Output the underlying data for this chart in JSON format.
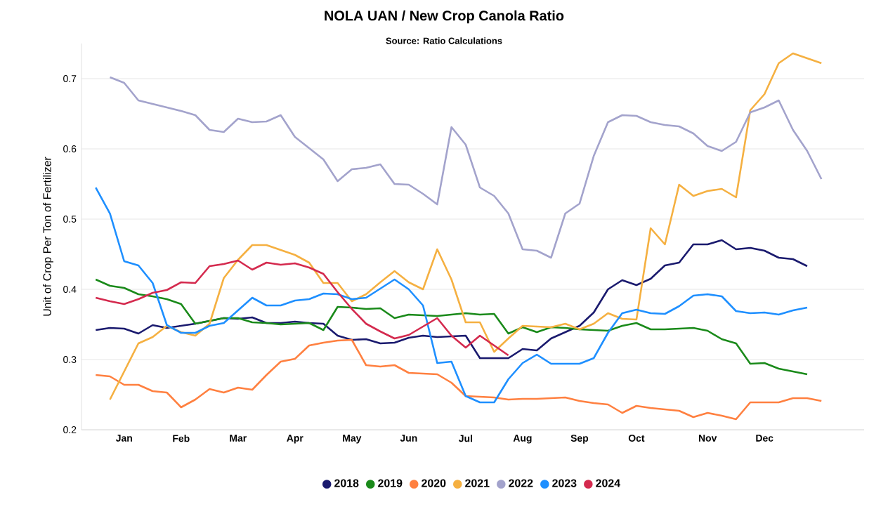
{
  "chart_data": {
    "type": "line",
    "title": "NOLA UAN / New Crop Canola Ratio",
    "subtitle": "Source: Ratio Calculations",
    "ylabel": "Unit of Crop Per Ton of Fertilizer",
    "categories": [
      null,
      null,
      "Jan",
      null,
      null,
      null,
      "Feb",
      null,
      null,
      null,
      "Mar",
      null,
      null,
      null,
      "Apr",
      null,
      null,
      null,
      "May",
      null,
      null,
      null,
      "Jun",
      null,
      null,
      null,
      "Jul",
      null,
      null,
      null,
      "Aug",
      null,
      null,
      null,
      "Sep",
      null,
      null,
      null,
      "Oct",
      null,
      null,
      null,
      null,
      "Nov",
      null,
      null,
      null,
      "Dec",
      null,
      null,
      null,
      null,
      null,
      null
    ],
    "ylim": [
      0.2,
      0.75
    ],
    "yticks": [
      0.2,
      0.3,
      0.4,
      0.5,
      0.6,
      0.7
    ],
    "grid": "y",
    "legend": "bottom",
    "marker": "none",
    "line_style": "solid",
    "series": [
      {
        "name": "2018",
        "color": "#1a1a6e",
        "values": [
          0.342,
          0.345,
          0.344,
          0.337,
          0.349,
          0.345,
          0.348,
          0.351,
          0.355,
          0.359,
          0.358,
          0.36,
          0.352,
          0.352,
          0.354,
          0.352,
          0.351,
          0.334,
          0.328,
          0.329,
          0.323,
          0.324,
          0.331,
          0.334,
          0.332,
          0.333,
          0.334,
          0.302,
          0.302,
          0.302,
          0.315,
          0.313,
          0.33,
          0.339,
          0.348,
          0.367,
          0.4,
          0.413,
          0.406,
          0.415,
          0.434,
          0.438,
          0.464,
          0.464,
          0.47,
          0.457,
          0.459,
          0.455,
          0.445,
          0.443,
          0.433,
          null,
          null,
          null
        ]
      },
      {
        "name": "2019",
        "color": "#1a8a1a",
        "values": [
          0.414,
          0.405,
          0.402,
          0.393,
          0.39,
          0.386,
          0.379,
          0.351,
          0.355,
          0.359,
          0.359,
          0.353,
          0.352,
          0.35,
          0.351,
          0.352,
          0.342,
          0.375,
          0.374,
          0.372,
          0.373,
          0.359,
          0.364,
          0.363,
          0.362,
          0.364,
          0.366,
          0.364,
          0.365,
          0.337,
          0.346,
          0.339,
          0.346,
          0.345,
          0.343,
          0.342,
          0.341,
          0.348,
          0.352,
          0.343,
          0.343,
          0.344,
          0.345,
          0.341,
          0.329,
          0.323,
          0.294,
          0.295,
          0.287,
          0.283,
          0.279,
          null,
          null,
          null
        ]
      },
      {
        "name": "2020",
        "color": "#ff8040",
        "values": [
          0.278,
          0.276,
          0.264,
          0.264,
          0.255,
          0.253,
          0.232,
          0.243,
          0.258,
          0.253,
          0.26,
          0.257,
          0.278,
          0.297,
          0.301,
          0.32,
          0.324,
          0.327,
          0.328,
          0.292,
          0.29,
          0.292,
          0.281,
          0.28,
          0.279,
          0.267,
          0.248,
          0.247,
          0.246,
          0.243,
          0.244,
          0.244,
          0.245,
          0.246,
          0.241,
          0.238,
          0.236,
          0.224,
          0.234,
          0.231,
          0.229,
          0.227,
          0.218,
          0.224,
          0.22,
          0.215,
          0.239,
          0.239,
          0.239,
          0.245,
          0.245,
          0.241,
          null,
          null
        ]
      },
      {
        "name": "2021",
        "color": "#f5b041",
        "values": [
          null,
          0.243,
          0.283,
          0.323,
          0.332,
          0.348,
          0.339,
          0.334,
          0.351,
          0.416,
          0.442,
          0.463,
          0.463,
          0.456,
          0.449,
          0.438,
          0.409,
          0.409,
          0.383,
          0.393,
          0.41,
          0.426,
          0.41,
          0.4,
          0.457,
          0.414,
          0.353,
          0.353,
          0.311,
          0.33,
          0.348,
          0.347,
          0.346,
          0.351,
          0.343,
          0.351,
          0.366,
          0.358,
          0.357,
          0.487,
          0.464,
          0.549,
          0.533,
          0.54,
          0.543,
          0.531,
          0.655,
          0.678,
          0.722,
          0.736,
          0.729,
          0.722,
          null,
          null
        ]
      },
      {
        "name": "2022",
        "color": "#a3a3cc",
        "values": [
          null,
          0.702,
          0.694,
          0.669,
          0.664,
          0.659,
          0.654,
          0.648,
          0.627,
          0.624,
          0.643,
          0.638,
          0.639,
          0.648,
          0.617,
          0.601,
          0.585,
          0.554,
          0.571,
          0.573,
          0.578,
          0.55,
          0.549,
          0.536,
          0.521,
          0.631,
          0.606,
          0.545,
          0.533,
          0.508,
          0.457,
          0.455,
          0.445,
          0.508,
          0.522,
          0.59,
          0.638,
          0.648,
          0.647,
          0.638,
          0.634,
          0.632,
          0.622,
          0.604,
          0.597,
          0.61,
          0.652,
          0.659,
          0.669,
          0.627,
          0.597,
          0.557,
          null,
          null
        ]
      },
      {
        "name": "2023",
        "color": "#1e8fff",
        "values": [
          0.545,
          0.508,
          0.44,
          0.434,
          0.409,
          0.349,
          0.338,
          0.338,
          0.348,
          0.352,
          0.37,
          0.388,
          0.377,
          0.377,
          0.384,
          0.386,
          0.394,
          0.393,
          0.386,
          0.388,
          0.401,
          0.414,
          0.4,
          0.377,
          0.295,
          0.297,
          0.248,
          0.239,
          0.239,
          0.272,
          0.295,
          0.307,
          0.294,
          0.294,
          0.294,
          0.302,
          0.338,
          0.366,
          0.371,
          0.366,
          0.365,
          0.376,
          0.391,
          0.393,
          0.39,
          0.369,
          0.366,
          0.367,
          0.364,
          0.37,
          0.374,
          null,
          null,
          null
        ]
      },
      {
        "name": "2024",
        "color": "#d42a4e",
        "values": [
          0.388,
          0.383,
          0.379,
          0.386,
          0.395,
          0.399,
          0.41,
          0.409,
          0.433,
          0.436,
          0.441,
          0.428,
          0.438,
          0.435,
          0.437,
          0.431,
          0.422,
          0.396,
          0.372,
          0.351,
          0.34,
          0.33,
          0.335,
          0.347,
          0.359,
          0.334,
          0.317,
          0.334,
          0.32,
          0.306,
          null,
          null,
          null,
          null,
          null,
          null,
          null,
          null,
          null,
          null,
          null,
          null,
          null,
          null,
          null,
          null,
          null,
          null,
          null,
          null,
          null,
          null,
          null,
          null
        ]
      }
    ]
  }
}
